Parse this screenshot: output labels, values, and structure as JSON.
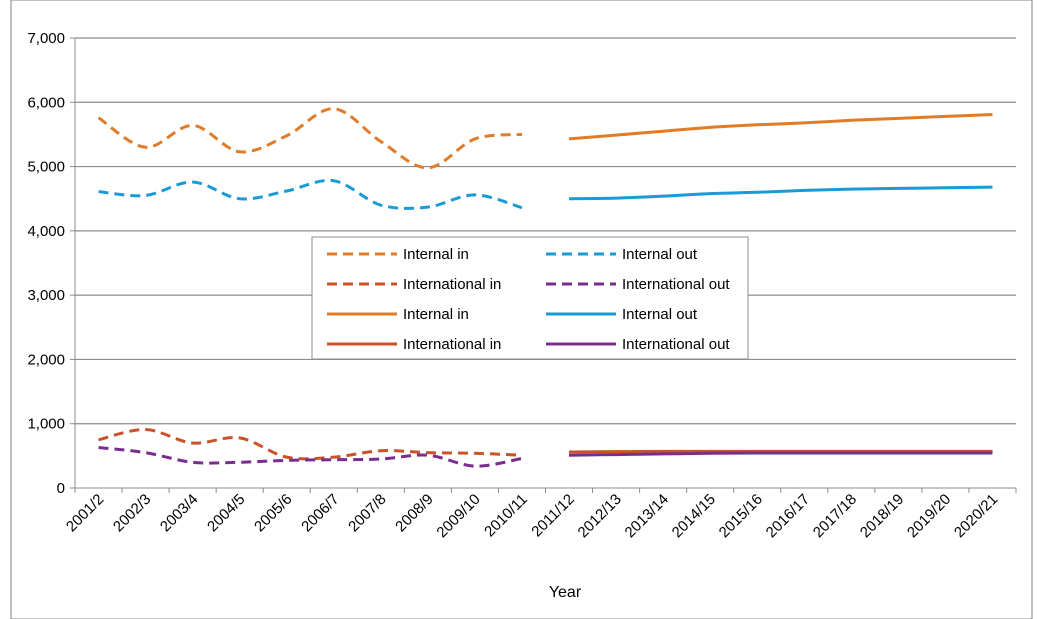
{
  "chart_data": {
    "type": "line",
    "title": "",
    "xlabel": "Year",
    "ylabel": "",
    "ylim": [
      0,
      7000
    ],
    "yticks": [
      "0",
      "1,000",
      "2,000",
      "3,000",
      "4,000",
      "5,000",
      "6,000",
      "7,000"
    ],
    "grid": "horizontal",
    "legend_position": "center",
    "categories": [
      "2001/2",
      "2002/3",
      "2003/4",
      "2004/5",
      "2005/6",
      "2006/7",
      "2007/8",
      "2008/9",
      "2009/10",
      "2010/11",
      "2011/12",
      "2012/13",
      "2013/14",
      "2014/15",
      "2015/16",
      "2016/17",
      "2017/18",
      "2018/19",
      "2019/20",
      "2020/21"
    ],
    "series": [
      {
        "name": "Internal in",
        "style": "dashed",
        "color": "#E07B28",
        "values": [
          5760,
          5300,
          5640,
          5230,
          5480,
          5900,
          5390,
          4980,
          5430,
          5500,
          null,
          null,
          null,
          null,
          null,
          null,
          null,
          null,
          null,
          null
        ]
      },
      {
        "name": "Internal out",
        "style": "dashed",
        "color": "#1A9BD7",
        "values": [
          4610,
          4550,
          4760,
          4500,
          4620,
          4780,
          4400,
          4370,
          4560,
          4360,
          null,
          null,
          null,
          null,
          null,
          null,
          null,
          null,
          null,
          null
        ]
      },
      {
        "name": "International in",
        "style": "dashed",
        "color": "#C9522A",
        "values": [
          750,
          910,
          700,
          780,
          480,
          480,
          580,
          550,
          540,
          510,
          null,
          null,
          null,
          null,
          null,
          null,
          null,
          null,
          null,
          null
        ]
      },
      {
        "name": "International out",
        "style": "dashed",
        "color": "#7B2D8E",
        "values": [
          630,
          550,
          400,
          400,
          430,
          440,
          450,
          510,
          340,
          460,
          null,
          null,
          null,
          null,
          null,
          null,
          null,
          null,
          null,
          null
        ]
      },
      {
        "name": "Internal in",
        "style": "solid",
        "color": "#E07B28",
        "values": [
          null,
          null,
          null,
          null,
          null,
          null,
          null,
          null,
          null,
          null,
          5430,
          5490,
          5550,
          5610,
          5650,
          5680,
          5720,
          5750,
          5780,
          5810
        ]
      },
      {
        "name": "Internal out",
        "style": "solid",
        "color": "#1A9BD7",
        "values": [
          null,
          null,
          null,
          null,
          null,
          null,
          null,
          null,
          null,
          null,
          4500,
          4510,
          4540,
          4580,
          4600,
          4630,
          4650,
          4660,
          4670,
          4680
        ]
      },
      {
        "name": "International in",
        "style": "solid",
        "color": "#C9522A",
        "values": [
          null,
          null,
          null,
          null,
          null,
          null,
          null,
          null,
          null,
          null,
          560,
          565,
          570,
          570,
          570,
          570,
          570,
          570,
          570,
          570
        ]
      },
      {
        "name": "International out",
        "style": "solid",
        "color": "#7B2D8E",
        "values": [
          null,
          null,
          null,
          null,
          null,
          null,
          null,
          null,
          null,
          null,
          510,
          520,
          530,
          540,
          545,
          545,
          545,
          545,
          545,
          545
        ]
      }
    ]
  }
}
